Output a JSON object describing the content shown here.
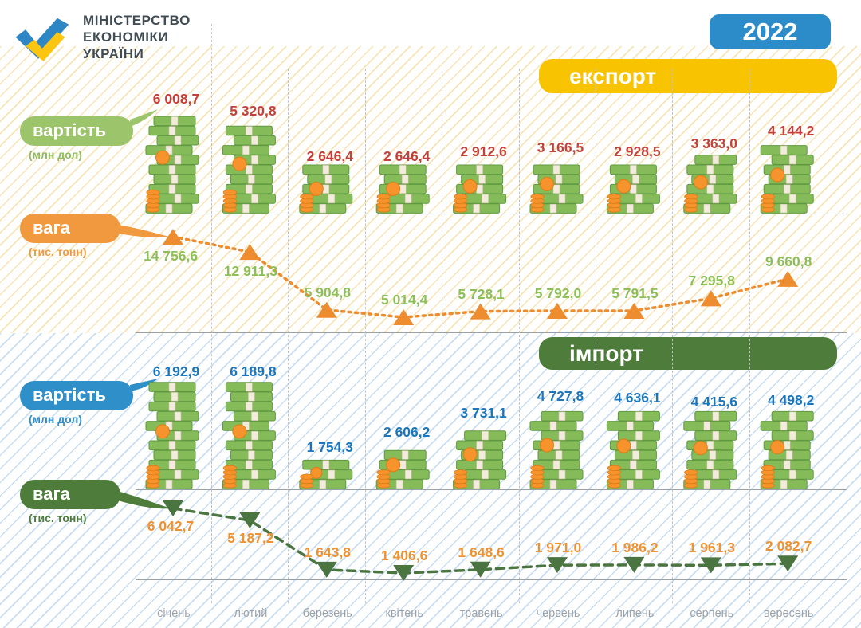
{
  "year_badge": "2022",
  "logo": {
    "line1": "МІНІСТЕРСТВО",
    "line2": "ЕКОНОМІКИ",
    "line3": "УКРАЇНИ"
  },
  "months": [
    "січень",
    "лютий",
    "березень",
    "квітень",
    "травень",
    "червень",
    "липень",
    "серпень",
    "вересень"
  ],
  "export_section": {
    "banner": "експорт",
    "value_label": "вартість",
    "value_unit": "(млн дол)",
    "value_display": [
      "6 008,7",
      "5 320,8",
      "2 646,4",
      "2 646,4",
      "2 912,6",
      "3 166,5",
      "2 928,5",
      "3 363,0",
      "4 144,2"
    ],
    "weight_label": "вага",
    "weight_unit": "(тис. тонн)",
    "weight_display": [
      "14 756,6",
      "12 911,3",
      "5 904,8",
      "5 014,4",
      "5 728,1",
      "5 792,0",
      "5 791,5",
      "7 295,8",
      "9 660,8"
    ]
  },
  "import_section": {
    "banner": "імпорт",
    "value_label": "вартість",
    "value_unit": "(млн дол)",
    "value_display": [
      "6 192,9",
      "6 189,8",
      "1 754,3",
      "2 606,2",
      "3 731,1",
      "4 727,8",
      "4 636,1",
      "4 415,6",
      "4 498,2"
    ],
    "weight_label": "вага",
    "weight_unit": "(тис. тонн)",
    "weight_display": [
      "6 042,7",
      "5 187,2",
      "1 643,8",
      "1 406,6",
      "1 648,6",
      "1 971,0",
      "1 986,2",
      "1 961,3",
      "2 082,7"
    ]
  },
  "chart_data": [
    {
      "type": "bar",
      "title": "експорт — вартість",
      "ylabel": "млн дол",
      "categories": [
        "січень",
        "лютий",
        "березень",
        "квітень",
        "травень",
        "червень",
        "липень",
        "серпень",
        "вересень"
      ],
      "values": [
        6008.7,
        5320.8,
        2646.4,
        2646.4,
        2912.6,
        3166.5,
        2928.5,
        3363.0,
        4144.2
      ]
    },
    {
      "type": "line",
      "title": "експорт — вага",
      "ylabel": "тис. тонн",
      "categories": [
        "січень",
        "лютий",
        "березень",
        "квітень",
        "травень",
        "червень",
        "липень",
        "серпень",
        "вересень"
      ],
      "values": [
        14756.6,
        12911.3,
        5904.8,
        5014.4,
        5728.1,
        5792.0,
        5791.5,
        7295.8,
        9660.8
      ]
    },
    {
      "type": "bar",
      "title": "імпорт — вартість",
      "ylabel": "млн дол",
      "categories": [
        "січень",
        "лютий",
        "березень",
        "квітень",
        "травень",
        "червень",
        "липень",
        "серпень",
        "вересень"
      ],
      "values": [
        6192.9,
        6189.8,
        1754.3,
        2606.2,
        3731.1,
        4727.8,
        4636.1,
        4415.6,
        4498.2
      ]
    },
    {
      "type": "line",
      "title": "імпорт — вага",
      "ylabel": "тис. тонн",
      "categories": [
        "січень",
        "лютий",
        "березень",
        "квітень",
        "травень",
        "червень",
        "липень",
        "серпень",
        "вересень"
      ],
      "values": [
        6042.7,
        5187.2,
        1643.8,
        1406.6,
        1648.6,
        1971.0,
        1986.2,
        1961.3,
        2082.7
      ]
    }
  ],
  "colors": {
    "year_badge_bg": "#2b8cc9",
    "export_banner_bg": "#f8c301",
    "import_banner_bg": "#4d7c3b",
    "export_value_bubble": "#9cc46a",
    "export_weight_bubble": "#f0993f",
    "import_value_bubble": "#2e8fc9",
    "import_weight_bubble": "#4d7c3b",
    "export_value_text": "#c5403a",
    "export_weight_text": "#8cbf57",
    "import_value_text": "#1b76bc",
    "import_weight_text": "#f0922f",
    "month_text": "#9aa3ab",
    "logo_blue": "#2f86c4",
    "logo_yellow": "#fcc511",
    "money_green": "#85bb58",
    "coin_orange": "#f6932d"
  }
}
